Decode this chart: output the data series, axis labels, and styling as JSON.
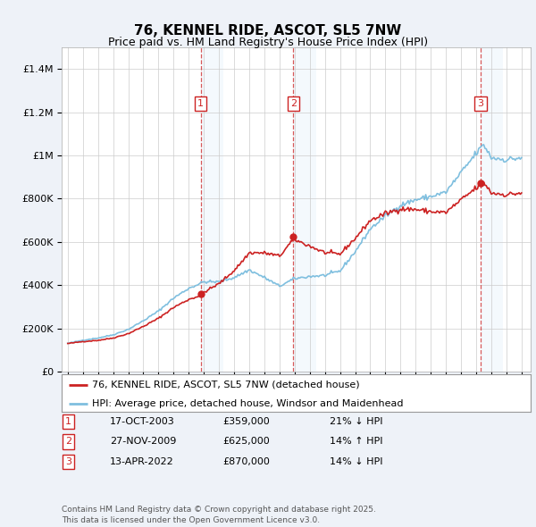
{
  "title": "76, KENNEL RIDE, ASCOT, SL5 7NW",
  "subtitle": "Price paid vs. HM Land Registry's House Price Index (HPI)",
  "background_color": "#eef2f8",
  "plot_background": "#ffffff",
  "hpi_color": "#7fbfdf",
  "price_color": "#cc2222",
  "ylim": [
    0,
    1500000
  ],
  "yticks": [
    0,
    200000,
    400000,
    600000,
    800000,
    1000000,
    1200000,
    1400000
  ],
  "trans_years": [
    2003.79,
    2009.91,
    2022.29
  ],
  "trans_prices": [
    359000,
    625000,
    870000
  ],
  "trans_labels": [
    "1",
    "2",
    "3"
  ],
  "legend_label_price": "76, KENNEL RIDE, ASCOT, SL5 7NW (detached house)",
  "legend_label_hpi": "HPI: Average price, detached house, Windsor and Maidenhead",
  "table_rows": [
    {
      "num": "1",
      "date": "17-OCT-2003",
      "price": "£359,000",
      "pct": "21% ↓ HPI"
    },
    {
      "num": "2",
      "date": "27-NOV-2009",
      "price": "£625,000",
      "pct": "14% ↑ HPI"
    },
    {
      "num": "3",
      "date": "13-APR-2022",
      "price": "£870,000",
      "pct": "14% ↓ HPI"
    }
  ],
  "footnote": "Contains HM Land Registry data © Crown copyright and database right 2025.\nThis data is licensed under the Open Government Licence v3.0.",
  "hpi_anchors": {
    "1995.0": 130000,
    "1996.0": 145000,
    "1997.0": 155000,
    "1998.0": 170000,
    "1999.0": 195000,
    "2000.0": 235000,
    "2001.0": 280000,
    "2002.0": 340000,
    "2003.0": 385000,
    "2004.0": 415000,
    "2005.0": 415000,
    "2006.0": 435000,
    "2007.0": 470000,
    "2008.0": 435000,
    "2009.0": 395000,
    "2010.0": 430000,
    "2011.0": 440000,
    "2012.0": 445000,
    "2013.0": 465000,
    "2014.0": 555000,
    "2015.0": 660000,
    "2016.0": 720000,
    "2017.0": 770000,
    "2018.0": 795000,
    "2019.0": 810000,
    "2020.0": 830000,
    "2021.0": 920000,
    "2022.0": 1010000,
    "2022.5": 1050000,
    "2023.0": 990000,
    "2024.0": 980000,
    "2025.0": 990000
  }
}
